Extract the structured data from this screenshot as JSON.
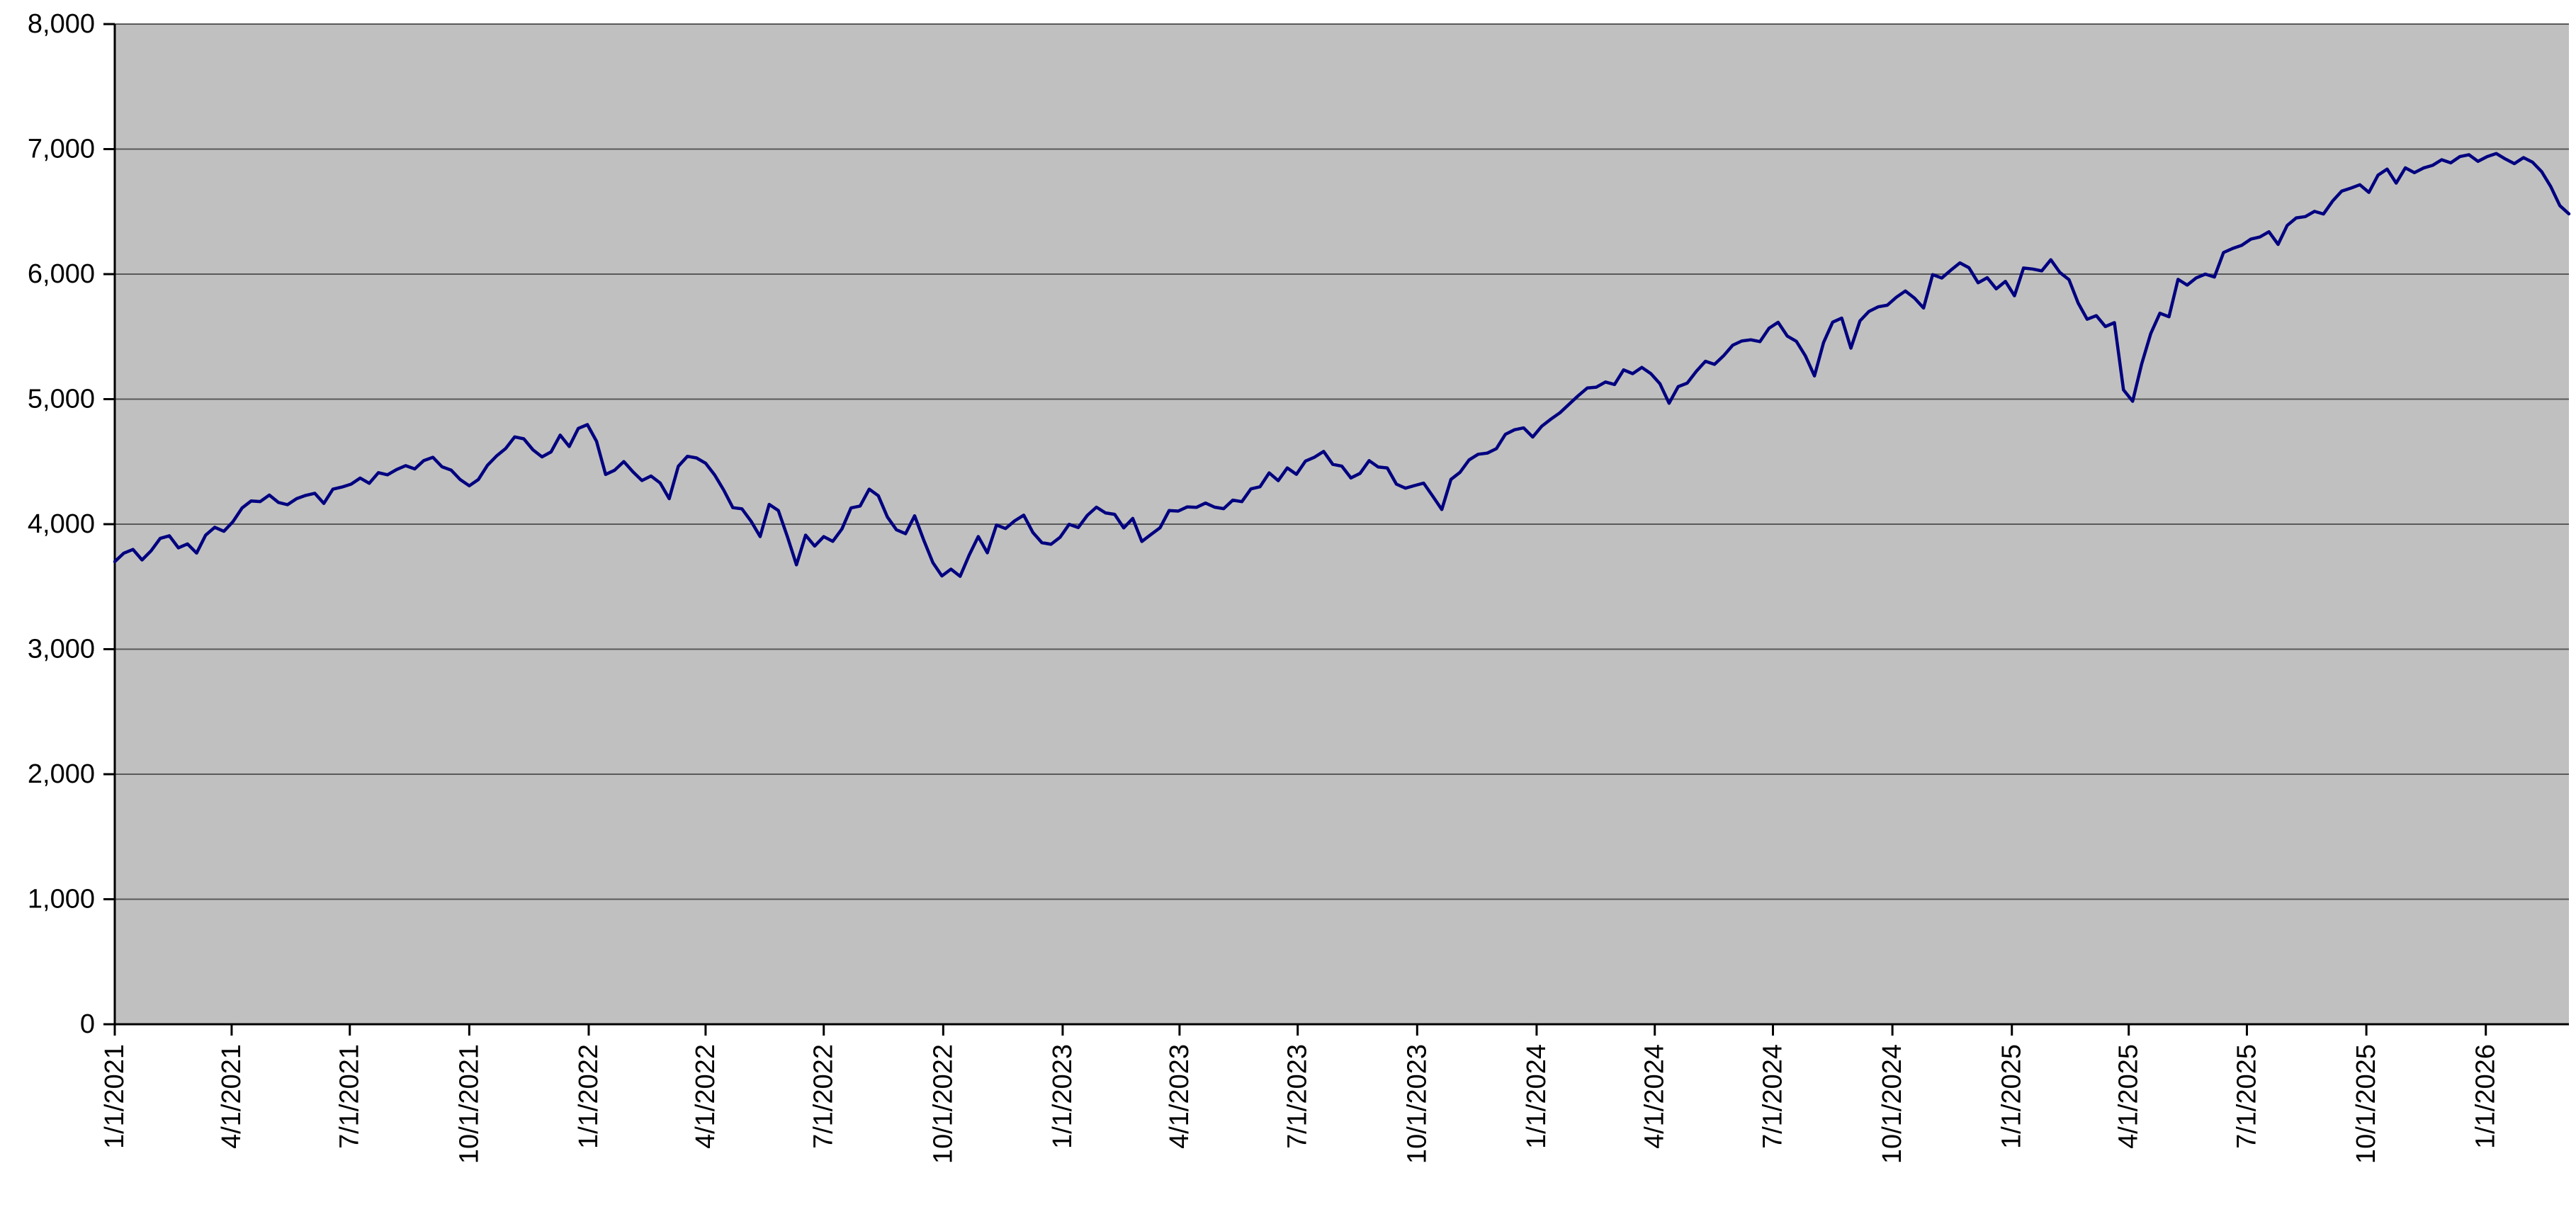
{
  "chart_data": {
    "type": "line",
    "title": "",
    "xlabel": "",
    "ylabel": "",
    "ylim": [
      0,
      8000
    ],
    "grid": true,
    "legend": "none",
    "plot_background": "#c0c0c0",
    "line_color": "#000080",
    "axis_color": "#000000",
    "gridline_color": "#595959",
    "y_ticks": [
      0,
      1000,
      2000,
      3000,
      4000,
      5000,
      6000,
      7000,
      8000
    ],
    "y_tick_labels": [
      "0",
      "1,000",
      "2,000",
      "3,000",
      "4,000",
      "5,000",
      "6,000",
      "7,000",
      "8,000"
    ],
    "x_tick_labels": [
      "1/1/2021",
      "4/1/2021",
      "7/1/2021",
      "10/1/2021",
      "1/1/2022",
      "4/1/2022",
      "7/1/2022",
      "10/1/2022",
      "1/1/2023",
      "4/1/2023",
      "7/1/2023",
      "10/1/2023",
      "1/1/2024",
      "4/1/2024",
      "7/1/2024",
      "10/1/2024",
      "1/1/2025",
      "4/1/2025",
      "7/1/2025",
      "10/1/2025",
      "1/1/2026"
    ],
    "x_tick_days": [
      0,
      90,
      181,
      273,
      365,
      455,
      546,
      638,
      730,
      820,
      911,
      1003,
      1095,
      1186,
      1277,
      1369,
      1461,
      1551,
      1642,
      1734,
      1826
    ],
    "total_days": 1890,
    "sample_interval_days": 7,
    "series": [
      {
        "name": "index-value",
        "values": [
          3700,
          3768,
          3798,
          3714,
          3787,
          3886,
          3907,
          3811,
          3842,
          3769,
          3913,
          3975,
          3943,
          4020,
          4129,
          4185,
          4181,
          4233,
          4174,
          4156,
          4204,
          4230,
          4247,
          4166,
          4280,
          4297,
          4320,
          4369,
          4327,
          4412,
          4395,
          4437,
          4468,
          4442,
          4509,
          4535,
          4459,
          4433,
          4357,
          4307,
          4357,
          4471,
          4545,
          4605,
          4698,
          4683,
          4595,
          4538,
          4578,
          4712,
          4621,
          4766,
          4796,
          4663,
          4398,
          4432,
          4501,
          4419,
          4349,
          4385,
          4329,
          4204,
          4463,
          4543,
          4530,
          4488,
          4393,
          4272,
          4132,
          4123,
          4024,
          3901,
          4158,
          4109,
          3900,
          3675,
          3912,
          3825,
          3900,
          3863,
          3962,
          4130,
          4145,
          4280,
          4228,
          4058,
          3955,
          3924,
          4067,
          3873,
          3693,
          3586,
          3640,
          3583,
          3753,
          3901,
          3771,
          3993,
          3965,
          4026,
          4072,
          3934,
          3852,
          3839,
          3895,
          3999,
          3973,
          4071,
          4136,
          4090,
          4079,
          3970,
          4046,
          3862,
          3917,
          3971,
          4109,
          4105,
          4138,
          4134,
          4169,
          4136,
          4124,
          4192,
          4180,
          4282,
          4299,
          4410,
          4348,
          4450,
          4399,
          4505,
          4536,
          4582,
          4478,
          4464,
          4370,
          4406,
          4508,
          4457,
          4450,
          4320,
          4288,
          4309,
          4328,
          4224,
          4117,
          4358,
          4415,
          4514,
          4559,
          4568,
          4604,
          4719,
          4755,
          4770,
          4697,
          4784,
          4840,
          4891,
          4959,
          5027,
          5089,
          5096,
          5137,
          5117,
          5234,
          5204,
          5254,
          5204,
          5123,
          4967,
          5100,
          5128,
          5223,
          5303,
          5278,
          5347,
          5431,
          5465,
          5475,
          5460,
          5567,
          5615,
          5505,
          5463,
          5346,
          5186,
          5454,
          5616,
          5648,
          5408,
          5626,
          5702,
          5738,
          5751,
          5815,
          5865,
          5808,
          5729,
          5996,
          5969,
          6032,
          6090,
          6051,
          5931,
          5971,
          5882,
          5942,
          5827,
          6049,
          6041,
          6026,
          6115,
          6013,
          5955,
          5770,
          5639,
          5668,
          5581,
          5612,
          5074,
          4983,
          5283,
          5525,
          5687,
          5659,
          5958,
          5912,
          5970,
          6000,
          5977,
          6173,
          6205,
          6230,
          6280,
          6297,
          6339,
          6238,
          6389,
          6450,
          6460,
          6502,
          6481,
          6584,
          6664,
          6688,
          6715,
          6654,
          6792,
          6840,
          6728,
          6850,
          6812,
          6849,
          6870,
          6915,
          6890,
          6940,
          6955,
          6902,
          6940,
          6965,
          6921,
          6884,
          6932,
          6895,
          6820,
          6701,
          6548,
          6482
        ]
      }
    ]
  }
}
